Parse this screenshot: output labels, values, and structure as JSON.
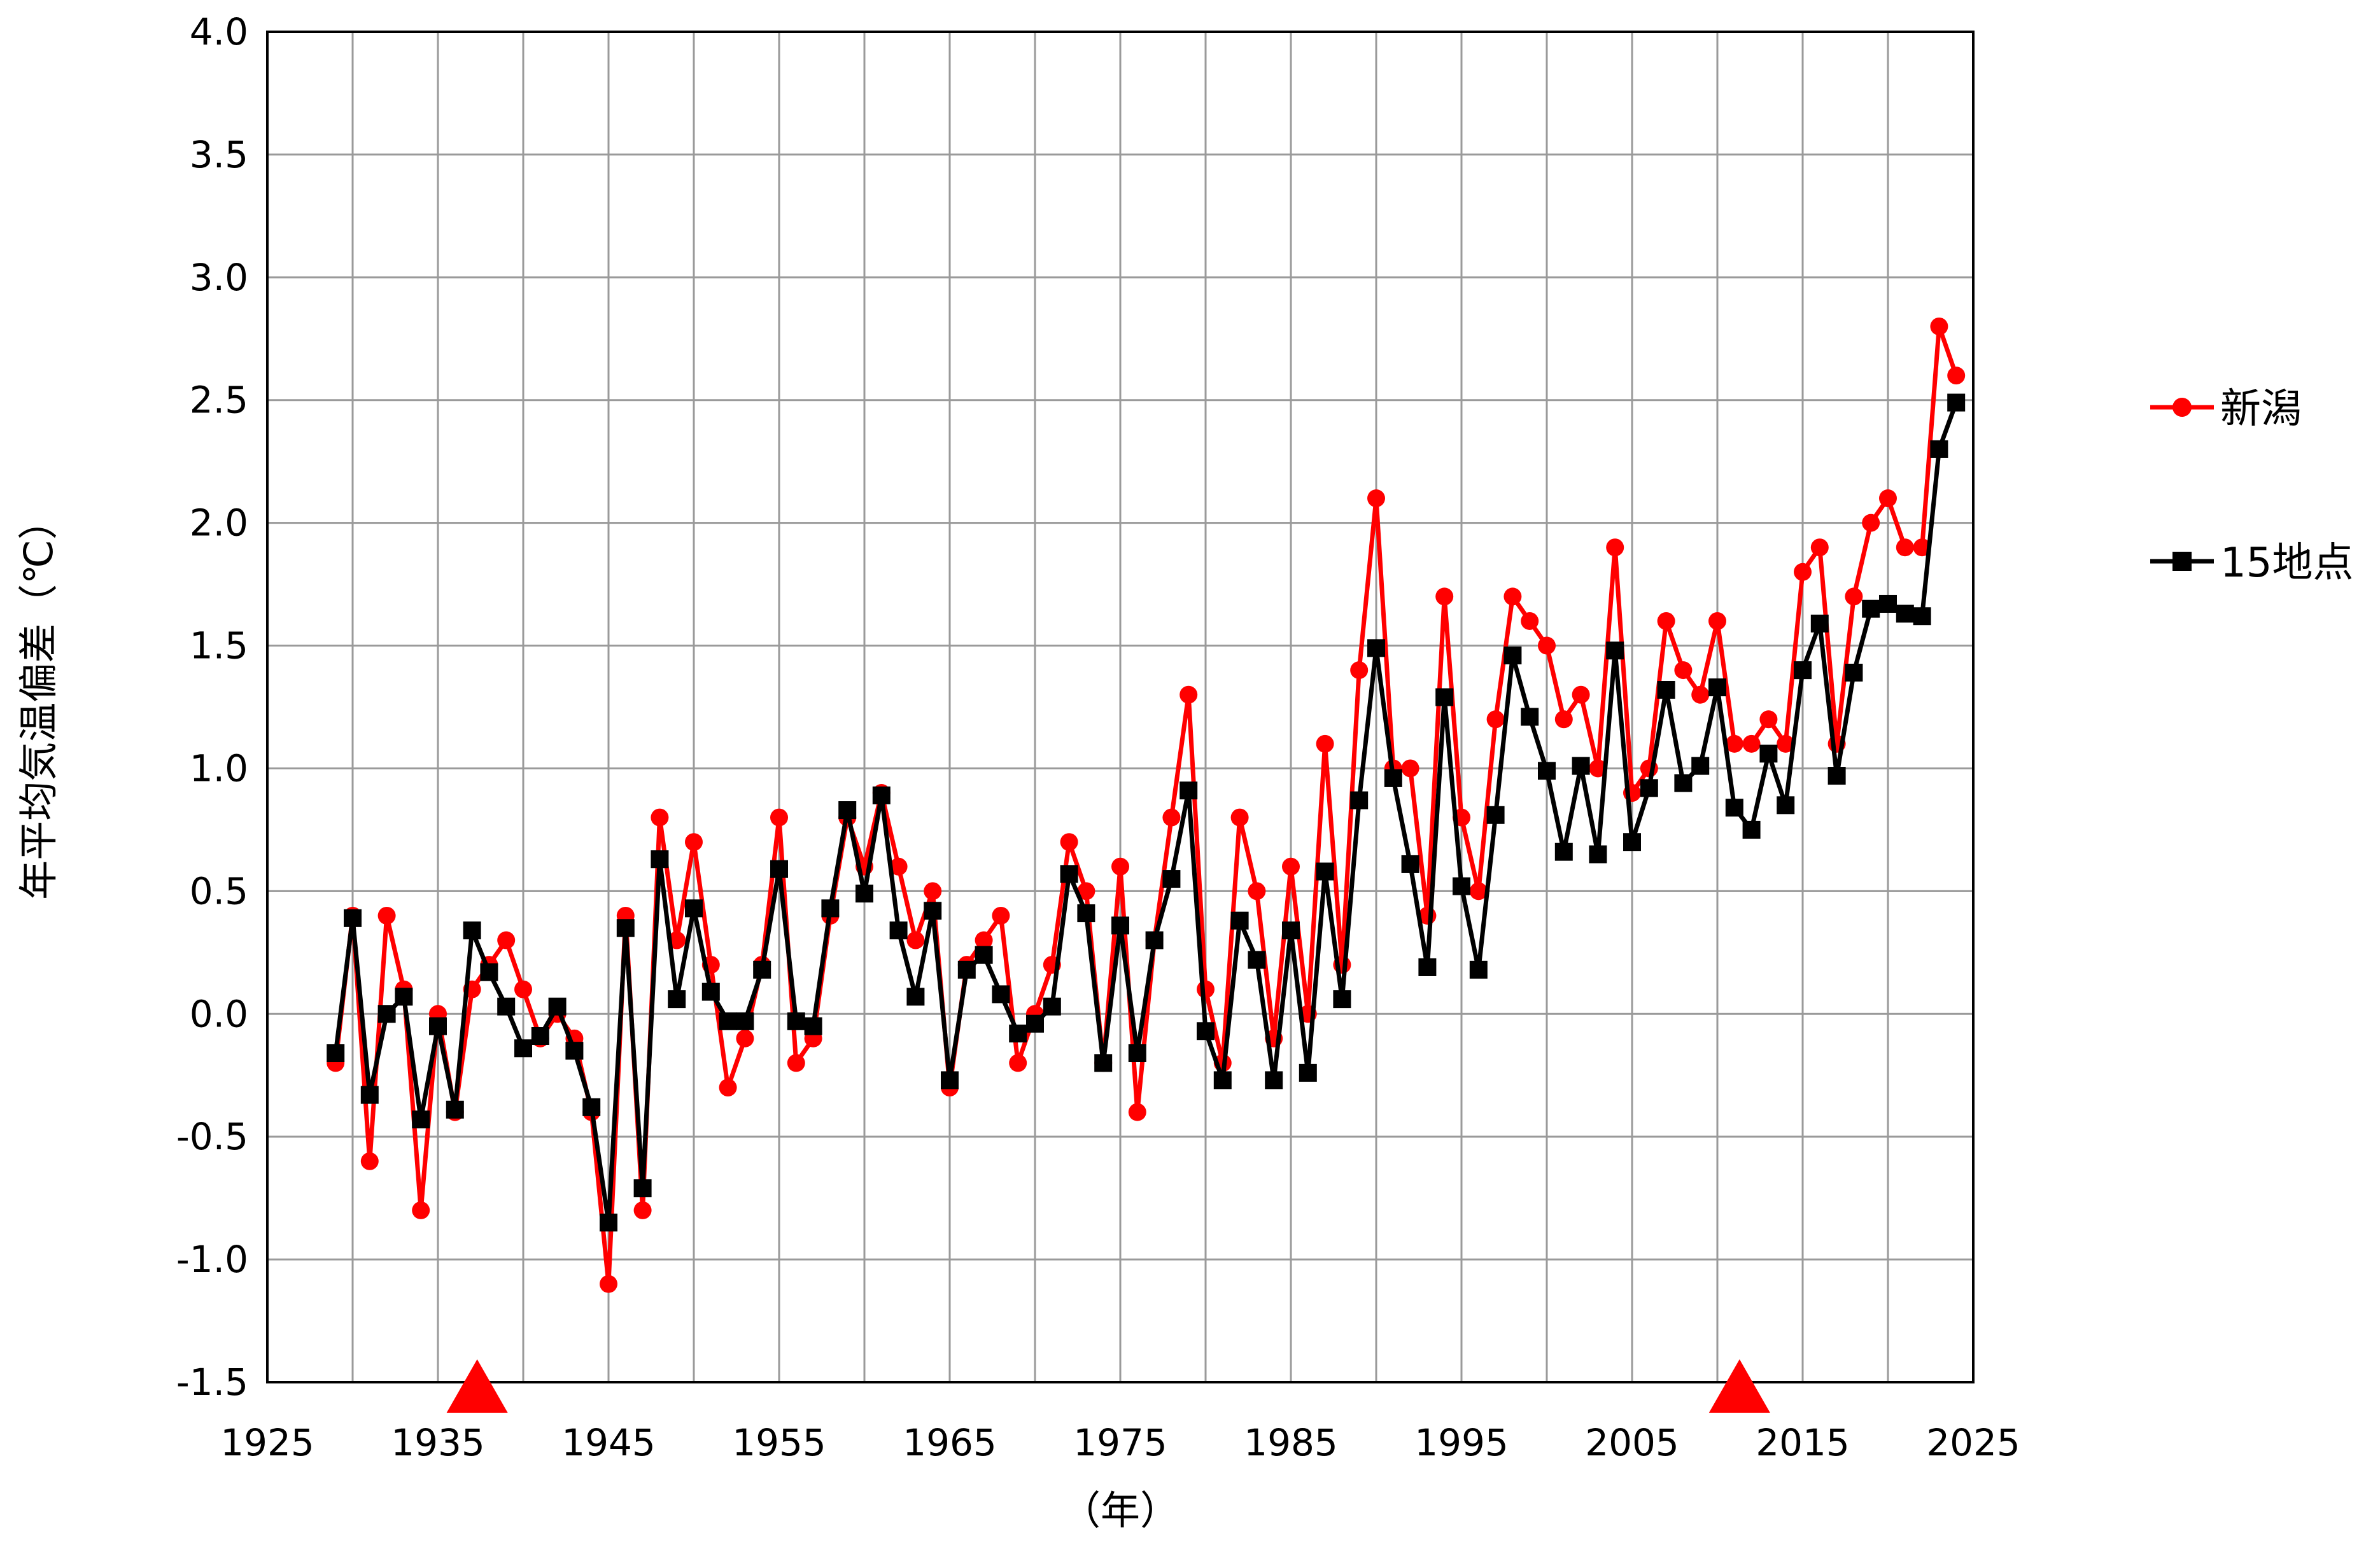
{
  "chart_data": {
    "type": "line",
    "title": "",
    "xlabel": "（年）",
    "ylabel": "年平均気温偏差（℃）",
    "xlim": [
      1925,
      2025
    ],
    "ylim": [
      -1.5,
      4.0
    ],
    "x_ticks": [
      1925,
      1935,
      1945,
      1955,
      1965,
      1975,
      1985,
      1995,
      2005,
      2015,
      2025
    ],
    "x_tick_labels": [
      "1925",
      "1935",
      "1945",
      "1955",
      "1965",
      "1975",
      "1985",
      "1995",
      "2005",
      "2015",
      "2025"
    ],
    "y_ticks": [
      -1.5,
      -1.0,
      -0.5,
      0.0,
      0.5,
      1.0,
      1.5,
      2.0,
      2.5,
      3.0,
      3.5,
      4.0
    ],
    "y_tick_labels": [
      "-1.5",
      "-1.0",
      "-0.5",
      "0.0",
      "0.5",
      "1.0",
      "1.5",
      "2.0",
      "2.5",
      "3.0",
      "3.5",
      "4.0"
    ],
    "grid": true,
    "legend_position": "right",
    "x": [
      1929,
      1930,
      1931,
      1932,
      1933,
      1934,
      1935,
      1936,
      1937,
      1938,
      1939,
      1940,
      1941,
      1942,
      1943,
      1944,
      1945,
      1946,
      1947,
      1948,
      1949,
      1950,
      1951,
      1952,
      1953,
      1954,
      1955,
      1956,
      1957,
      1958,
      1959,
      1960,
      1961,
      1962,
      1963,
      1964,
      1965,
      1966,
      1967,
      1968,
      1969,
      1970,
      1971,
      1972,
      1973,
      1974,
      1975,
      1976,
      1977,
      1978,
      1979,
      1980,
      1981,
      1982,
      1983,
      1984,
      1985,
      1986,
      1987,
      1988,
      1989,
      1990,
      1991,
      1992,
      1993,
      1994,
      1995,
      1996,
      1997,
      1998,
      1999,
      2000,
      2001,
      2002,
      2003,
      2004,
      2005,
      2006,
      2007,
      2008,
      2009,
      2010,
      2011,
      2012,
      2013,
      2014,
      2015,
      2016,
      2017,
      2018,
      2019,
      2020,
      2021,
      2022,
      2023,
      2024
    ],
    "series": [
      {
        "name": "新潟",
        "color": "#ff0000",
        "marker": "circle",
        "values": [
          -0.2,
          0.4,
          -0.6,
          0.4,
          0.1,
          -0.8,
          0.0,
          -0.4,
          0.1,
          0.2,
          0.3,
          0.1,
          -0.1,
          0.0,
          -0.1,
          -0.4,
          -1.1,
          0.4,
          -0.8,
          0.8,
          0.3,
          0.7,
          0.2,
          -0.3,
          -0.1,
          0.2,
          0.8,
          -0.2,
          -0.1,
          0.4,
          0.8,
          0.6,
          0.9,
          0.6,
          0.3,
          0.5,
          -0.3,
          0.2,
          0.3,
          0.4,
          -0.2,
          0.0,
          0.2,
          0.7,
          0.5,
          -0.2,
          0.6,
          -0.4,
          0.3,
          0.8,
          1.3,
          0.1,
          -0.2,
          0.8,
          0.5,
          -0.1,
          0.6,
          0.0,
          1.1,
          0.2,
          1.4,
          2.1,
          1.0,
          1.0,
          0.4,
          1.7,
          0.8,
          0.5,
          1.2,
          1.7,
          1.6,
          1.5,
          1.2,
          1.3,
          1.0,
          1.9,
          0.9,
          1.0,
          1.6,
          1.4,
          1.3,
          1.6,
          1.1,
          1.1,
          1.2,
          1.1,
          1.8,
          1.9,
          1.1,
          1.7,
          2.0,
          2.1,
          1.9,
          1.9,
          2.8,
          2.6
        ]
      },
      {
        "name": "15地点",
        "color": "#000000",
        "marker": "square",
        "values": [
          -0.16,
          0.39,
          -0.33,
          0.0,
          0.07,
          -0.43,
          -0.05,
          -0.39,
          0.34,
          0.17,
          0.03,
          -0.14,
          -0.09,
          0.03,
          -0.15,
          -0.38,
          -0.85,
          0.35,
          -0.71,
          0.63,
          0.06,
          0.43,
          0.09,
          -0.03,
          -0.03,
          0.18,
          0.59,
          -0.03,
          -0.05,
          0.43,
          0.83,
          0.49,
          0.89,
          0.34,
          0.07,
          0.42,
          -0.27,
          0.18,
          0.24,
          0.08,
          -0.08,
          -0.04,
          0.03,
          0.57,
          0.41,
          -0.2,
          0.36,
          -0.16,
          0.3,
          0.55,
          0.91,
          -0.07,
          -0.27,
          0.38,
          0.22,
          -0.27,
          0.34,
          -0.24,
          0.58,
          0.06,
          0.87,
          1.49,
          0.96,
          0.61,
          0.19,
          1.29,
          0.52,
          0.18,
          0.81,
          1.46,
          1.21,
          0.99,
          0.66,
          1.01,
          0.65,
          1.48,
          0.7,
          0.92,
          1.32,
          0.94,
          1.01,
          1.33,
          0.84,
          0.75,
          1.06,
          0.85,
          1.4,
          1.59,
          0.97,
          1.39,
          1.65,
          1.67,
          1.63,
          1.62,
          2.3,
          2.49
        ]
      }
    ],
    "annotations": [
      {
        "type": "triangle",
        "x": 1937.3,
        "y": -1.5,
        "color": "#ff0000"
      },
      {
        "type": "triangle",
        "x": 2011.3,
        "y": -1.5,
        "color": "#ff0000"
      }
    ]
  }
}
